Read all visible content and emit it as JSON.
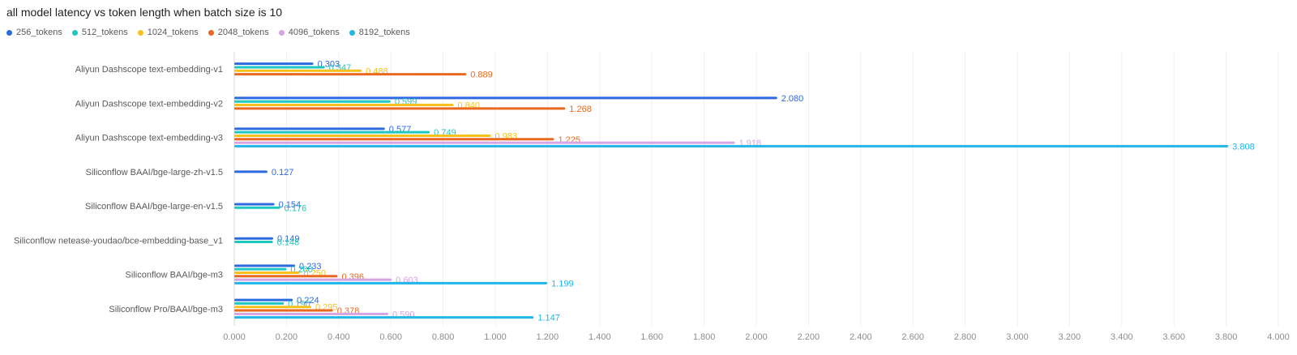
{
  "chart_data": {
    "type": "bar",
    "orientation": "horizontal",
    "title": "all model latency vs token length when batch size is 10",
    "legend_position": "top-left",
    "grid": true,
    "xlim": [
      0,
      4
    ],
    "x_ticks": [
      "0.000",
      "0.200",
      "0.400",
      "0.600",
      "0.800",
      "1.000",
      "1.200",
      "1.400",
      "1.600",
      "1.800",
      "2.000",
      "2.200",
      "2.400",
      "2.600",
      "2.800",
      "3.000",
      "3.200",
      "3.400",
      "3.600",
      "3.800",
      "4.000"
    ],
    "categories": [
      "Aliyun Dashscope text-embedding-v1",
      "Aliyun Dashscope text-embedding-v2",
      "Aliyun Dashscope text-embedding-v3",
      "Siliconflow BAAI/bge-large-zh-v1.5",
      "Siliconflow BAAI/bge-large-en-v1.5",
      "Siliconflow netease-youdao/bce-embedding-base_v1",
      "Siliconflow BAAI/bge-m3",
      "Siliconflow Pro/BAAI/bge-m3"
    ],
    "series": [
      {
        "name": "256_tokens",
        "color": "#2c6ae0",
        "values": [
          0.303,
          2.08,
          0.577,
          0.127,
          0.154,
          0.149,
          0.233,
          0.224
        ],
        "labels": [
          "0.303",
          "2.080",
          "0.577",
          "0.127",
          "0.154",
          "0.149",
          "0.233",
          "0.224"
        ]
      },
      {
        "name": "512_tokens",
        "color": "#1fc7c1",
        "values": [
          0.347,
          0.599,
          0.749,
          null,
          0.176,
          0.148,
          0.2,
          0.19
        ],
        "labels": [
          "0.347",
          "0.599",
          "0.749",
          null,
          "0.176",
          "0.148",
          "0.200",
          "0.190"
        ]
      },
      {
        "name": "1024_tokens",
        "color": "#f8c11a",
        "values": [
          0.488,
          0.84,
          0.983,
          null,
          null,
          null,
          0.25,
          0.295
        ],
        "labels": [
          "0.488",
          "0.840",
          "0.983",
          null,
          null,
          null,
          "0.250",
          "0.295"
        ]
      },
      {
        "name": "2048_tokens",
        "color": "#e8691f",
        "values": [
          0.889,
          1.268,
          1.225,
          null,
          null,
          null,
          0.396,
          0.378
        ],
        "labels": [
          "0.889",
          "1.268",
          "1.225",
          null,
          null,
          null,
          "0.396",
          "0.378"
        ]
      },
      {
        "name": "4096_tokens",
        "color": "#d6a3e3",
        "values": [
          null,
          null,
          1.918,
          null,
          null,
          null,
          0.603,
          0.59
        ],
        "labels": [
          null,
          null,
          "1.918",
          null,
          null,
          null,
          "0.603",
          "0.590"
        ]
      },
      {
        "name": "8192_tokens",
        "color": "#21b5e8",
        "values": [
          null,
          null,
          3.808,
          null,
          null,
          null,
          1.199,
          1.147
        ],
        "labels": [
          null,
          null,
          "3.808",
          null,
          null,
          null,
          "1.199",
          "1.147"
        ]
      }
    ]
  }
}
